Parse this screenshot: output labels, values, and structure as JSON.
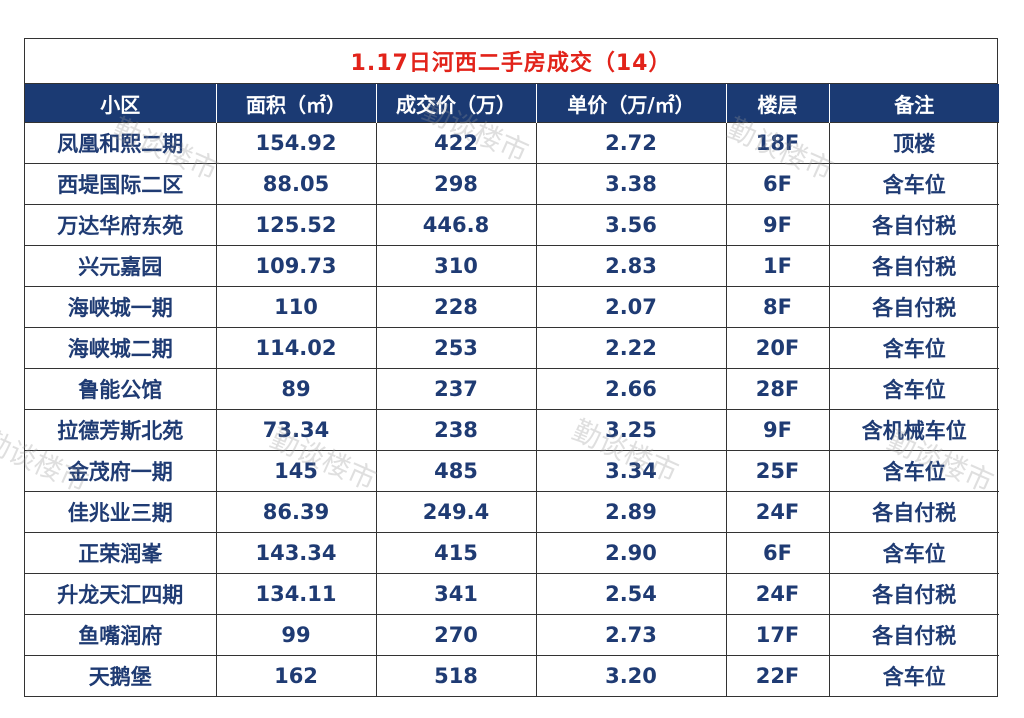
{
  "title": "1.17日河西二手房成交（14）",
  "headers": [
    "小区",
    "面积（㎡）",
    "成交价（万）",
    "单价（万/㎡）",
    "楼层",
    "备注"
  ],
  "rows": [
    [
      "凤凰和熙二期",
      "154.92",
      "422",
      "2.72",
      "18F",
      "顶楼"
    ],
    [
      "西堤国际二区",
      "88.05",
      "298",
      "3.38",
      "6F",
      "含车位"
    ],
    [
      "万达华府东苑",
      "125.52",
      "446.8",
      "3.56",
      "9F",
      "各自付税"
    ],
    [
      "兴元嘉园",
      "109.73",
      "310",
      "2.83",
      "1F",
      "各自付税"
    ],
    [
      "海峡城一期",
      "110",
      "228",
      "2.07",
      "8F",
      "各自付税"
    ],
    [
      "海峡城二期",
      "114.02",
      "253",
      "2.22",
      "20F",
      "含车位"
    ],
    [
      "鲁能公馆",
      "89",
      "237",
      "2.66",
      "28F",
      "含车位"
    ],
    [
      "拉德芳斯北苑",
      "73.34",
      "238",
      "3.25",
      "9F",
      "含机械车位"
    ],
    [
      "金茂府一期",
      "145",
      "485",
      "3.34",
      "25F",
      "含车位"
    ],
    [
      "佳兆业三期",
      "86.39",
      "249.4",
      "2.89",
      "24F",
      "各自付税"
    ],
    [
      "正荣润峯",
      "143.34",
      "415",
      "2.90",
      "6F",
      "含车位"
    ],
    [
      "升龙天汇四期",
      "134.11",
      "341",
      "2.54",
      "24F",
      "各自付税"
    ],
    [
      "鱼嘴润府",
      "99",
      "270",
      "2.73",
      "17F",
      "各自付税"
    ],
    [
      "天鹅堡",
      "162",
      "518",
      "3.20",
      "22F",
      "含车位"
    ]
  ],
  "watermark": "勤谈楼市",
  "colors": {
    "title": "#e2231a",
    "header_bg": "#1b3a73",
    "cell_text": "#1f3b73"
  }
}
